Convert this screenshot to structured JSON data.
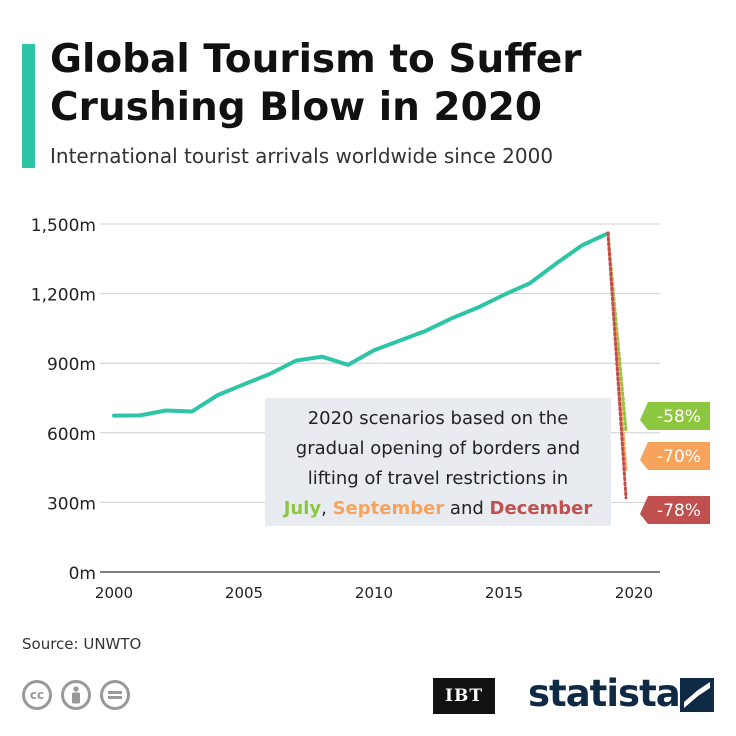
{
  "header": {
    "title": "Global Tourism to Suffer Crushing Blow in 2020",
    "subtitle": "International tourist arrivals worldwide since 2000"
  },
  "footer": {
    "source": "Source: UNWTO",
    "ibt_logo": "IBT",
    "statista_logo": "statista"
  },
  "colors": {
    "accent": "#2ec4a6",
    "july": "#8dc63f",
    "september": "#f7a35c",
    "december": "#c0504d"
  },
  "chart_data": {
    "type": "line",
    "title": "Global Tourism to Suffer Crushing Blow in 2020",
    "subtitle": "International tourist arrivals worldwide since 2000",
    "xlabel": "",
    "ylabel": "",
    "xlim": [
      2000,
      2020
    ],
    "ylim": [
      0,
      1500
    ],
    "x_ticks": [
      2000,
      2005,
      2010,
      2015,
      2020
    ],
    "y_ticks": [
      {
        "value": 0,
        "label": "0m"
      },
      {
        "value": 300,
        "label": "300m"
      },
      {
        "value": 600,
        "label": "600m"
      },
      {
        "value": 900,
        "label": "900m"
      },
      {
        "value": 1200,
        "label": "1,200m"
      },
      {
        "value": 1500,
        "label": "1,500m"
      }
    ],
    "grid": true,
    "series": [
      {
        "x": [
          2000,
          2001,
          2002,
          2003,
          2004,
          2005,
          2006,
          2007,
          2008,
          2009,
          2010,
          2011,
          2012,
          2013,
          2014,
          2015,
          2016,
          2017,
          2018,
          2019
        ],
        "values": [
          674,
          675,
          696,
          692,
          763,
          809,
          854,
          911,
          928,
          893,
          956,
          998,
          1040,
          1094,
          1140,
          1195,
          1245,
          1329,
          1408,
          1460
        ],
        "color": "#2ec4a6"
      }
    ],
    "scenarios": [
      {
        "from_x": 2019,
        "from_y": 1460,
        "x": 2020,
        "y": 610,
        "label": "-58%",
        "name": "July",
        "color": "#8dc63f"
      },
      {
        "from_x": 2019,
        "from_y": 1460,
        "x": 2020,
        "y": 440,
        "label": "-70%",
        "name": "September",
        "color": "#f7a35c"
      },
      {
        "from_x": 2019,
        "from_y": 1460,
        "x": 2020,
        "y": 320,
        "label": "-78%",
        "name": "December",
        "color": "#c0504d"
      }
    ],
    "annotation": {
      "lines": [
        "2020 scenarios based on the",
        "gradual opening of borders and",
        "lifting of travel restrictions in"
      ],
      "july": "July",
      "comma": ",",
      "september": "September",
      "and": "and",
      "december": "December"
    }
  }
}
